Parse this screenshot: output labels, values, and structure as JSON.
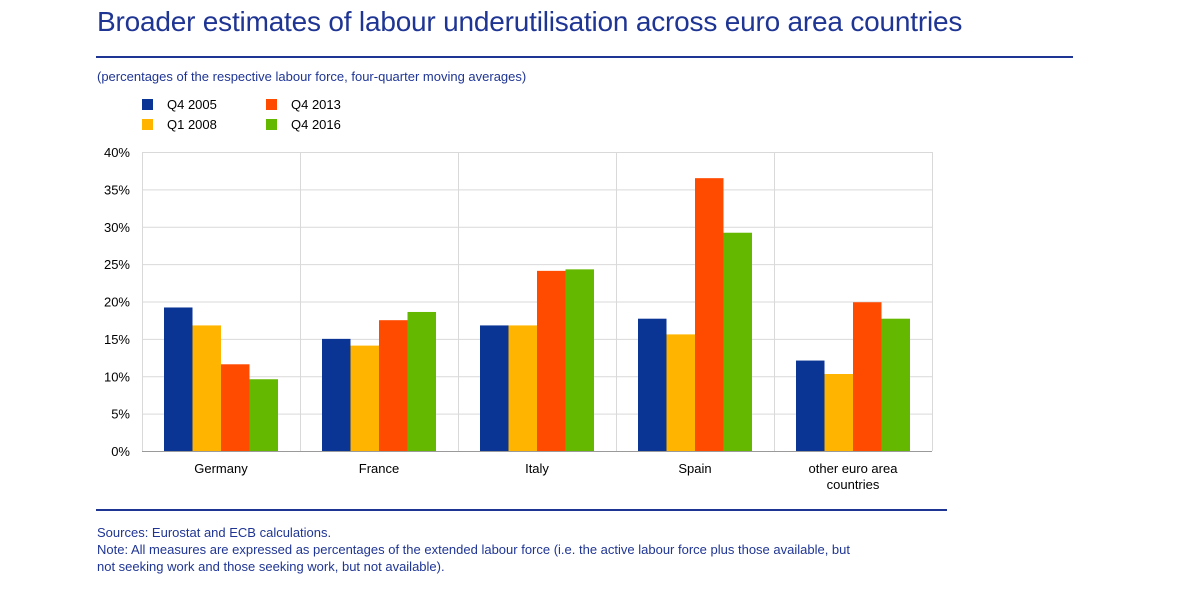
{
  "title": "Broader estimates of labour underutilisation across euro area countries",
  "subtitle": "(percentages of the respective labour force, four-quarter moving averages)",
  "footer": {
    "sources": "Sources: Eurostat and ECB calculations.",
    "note_line1": "Note: All measures are expressed as percentages of the extended labour force (i.e. the active labour force plus those available, but",
    "note_line2": "not seeking work and those seeking work, but not available)."
  },
  "chart_data": {
    "type": "bar",
    "title": "Broader estimates of labour underutilisation across euro area countries",
    "xlabel": "",
    "ylabel": "",
    "ylim": [
      0,
      40
    ],
    "yticks": [
      0,
      5,
      10,
      15,
      20,
      25,
      30,
      35,
      40
    ],
    "ytick_labels": [
      "0%",
      "5%",
      "10%",
      "15%",
      "20%",
      "25%",
      "30%",
      "35%",
      "40%"
    ],
    "grid": true,
    "legend_position": "top-left",
    "categories": [
      "Germany",
      "France",
      "Italy",
      "Spain",
      "other euro area countries"
    ],
    "category_lines": [
      [
        "Germany"
      ],
      [
        "France"
      ],
      [
        "Italy"
      ],
      [
        "Spain"
      ],
      [
        "other euro area",
        "countries"
      ]
    ],
    "series": [
      {
        "name": "Q4 2005",
        "color": "#0b3595",
        "values": [
          19.2,
          15.0,
          16.8,
          17.7,
          12.1
        ]
      },
      {
        "name": "Q1 2008",
        "color": "#ffb400",
        "values": [
          16.8,
          14.1,
          16.8,
          15.6,
          10.3
        ]
      },
      {
        "name": "Q4 2013",
        "color": "#ff4b00",
        "values": [
          11.6,
          17.5,
          24.1,
          36.5,
          19.9
        ]
      },
      {
        "name": "Q4 2016",
        "color": "#65b800",
        "values": [
          9.6,
          18.6,
          24.3,
          29.2,
          17.7
        ]
      }
    ]
  }
}
